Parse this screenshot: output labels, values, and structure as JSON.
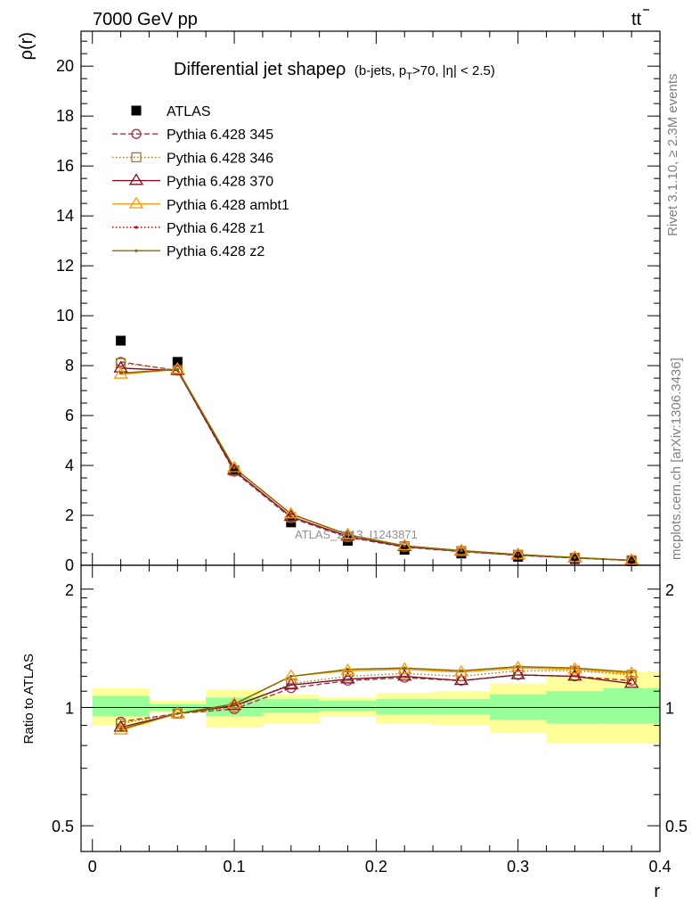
{
  "header": {
    "left": "7000 GeV pp",
    "right_symbol": "tt",
    "right_bar": "̄",
    "side_top": "Rivet 3.1.10, ≥ 2.3M events",
    "side_bottom": "mcplots.cern.ch [arXiv:1306.3436]"
  },
  "chart_data": [
    {
      "type": "scatter",
      "title_main": "Differential jet shapeρ",
      "title_cut_a": "(b-jets, p",
      "title_cut_sub": "T",
      "title_cut_b": ">70, |η| < 2.5)",
      "ylabel": "ρ(r)",
      "xlabel": "r",
      "xlim": [
        -0.008,
        0.4
      ],
      "ylim": [
        0,
        21.4
      ],
      "yticks": [
        0,
        2,
        4,
        6,
        8,
        10,
        12,
        14,
        16,
        18,
        20
      ],
      "ytick_labels": [
        "0",
        "2",
        "4",
        "6",
        "8",
        "10",
        "12",
        "14",
        "16",
        "18",
        "20"
      ],
      "watermark": "ATLAS_2013_I1243871",
      "x": [
        0.02,
        0.06,
        0.1,
        0.14,
        0.18,
        0.22,
        0.26,
        0.3,
        0.34,
        0.38
      ],
      "series": [
        {
          "name": "ATLAS",
          "color": "#000000",
          "marker": "square-filled",
          "line": "none",
          "values": [
            9.0,
            8.15,
            3.8,
            1.72,
            0.98,
            0.62,
            0.47,
            0.34,
            0.25,
            0.16
          ]
        },
        {
          "name": "Pythia 6.428 345",
          "color": "#b03040",
          "marker": "circle",
          "line": "dashed",
          "values": [
            8.15,
            7.8,
            3.75,
            1.9,
            1.12,
            0.73,
            0.55,
            0.4,
            0.29,
            0.19
          ]
        },
        {
          "name": "Pythia 6.428 346",
          "color": "#a07830",
          "marker": "square",
          "line": "dotted",
          "values": [
            8.1,
            7.82,
            3.78,
            1.92,
            1.15,
            0.76,
            0.57,
            0.42,
            0.3,
            0.2
          ]
        },
        {
          "name": "Pythia 6.428 370",
          "color": "#801020",
          "marker": "triangle",
          "line": "solid",
          "values": [
            7.9,
            7.8,
            3.8,
            1.95,
            1.16,
            0.75,
            0.56,
            0.41,
            0.3,
            0.19
          ]
        },
        {
          "name": "Pythia 6.428 ambt1",
          "color": "#ff9900",
          "marker": "triangle",
          "line": "solid",
          "values": [
            7.65,
            7.85,
            3.9,
            2.05,
            1.22,
            0.78,
            0.58,
            0.43,
            0.31,
            0.2
          ]
        },
        {
          "name": "Pythia 6.428 z1",
          "color": "#cc0000",
          "marker": "dot",
          "line": "dotted",
          "values": [
            7.7,
            7.85,
            3.9,
            2.05,
            1.23,
            0.78,
            0.59,
            0.43,
            0.31,
            0.2
          ]
        },
        {
          "name": "Pythia 6.428 z2",
          "color": "#807000",
          "marker": "dot",
          "line": "solid",
          "values": [
            7.7,
            7.85,
            3.9,
            2.06,
            1.23,
            0.78,
            0.59,
            0.43,
            0.31,
            0.2
          ]
        }
      ]
    },
    {
      "type": "line",
      "ylabel": "Ratio to ATLAS",
      "xlabel": "r",
      "xlim": [
        -0.008,
        0.4
      ],
      "ylim": [
        0.43,
        2.3
      ],
      "log_y": true,
      "yticks": [
        0.5,
        1,
        2
      ],
      "ytick_labels": [
        "0.5",
        "1",
        "2"
      ],
      "xticks": [
        0,
        0.1,
        0.2,
        0.3,
        0.4
      ],
      "xtick_labels": [
        "0",
        "0.1",
        "0.2",
        "0.3",
        "0.4"
      ],
      "bins": [
        [
          0.0,
          0.04
        ],
        [
          0.04,
          0.08
        ],
        [
          0.08,
          0.12
        ],
        [
          0.12,
          0.16
        ],
        [
          0.16,
          0.2
        ],
        [
          0.2,
          0.24
        ],
        [
          0.24,
          0.28
        ],
        [
          0.28,
          0.32
        ],
        [
          0.32,
          0.36
        ],
        [
          0.36,
          0.4
        ]
      ],
      "band_yellow": [
        [
          0.9,
          1.12
        ],
        [
          0.97,
          1.04
        ],
        [
          0.89,
          1.11
        ],
        [
          0.91,
          1.08
        ],
        [
          0.95,
          1.06
        ],
        [
          0.91,
          1.09
        ],
        [
          0.9,
          1.1
        ],
        [
          0.86,
          1.15
        ],
        [
          0.81,
          1.2
        ],
        [
          0.81,
          1.23
        ]
      ],
      "band_green": [
        [
          0.95,
          1.07
        ],
        [
          0.98,
          1.02
        ],
        [
          0.95,
          1.06
        ],
        [
          0.97,
          1.05
        ],
        [
          0.98,
          1.04
        ],
        [
          0.96,
          1.05
        ],
        [
          0.96,
          1.05
        ],
        [
          0.93,
          1.08
        ],
        [
          0.91,
          1.1
        ],
        [
          0.91,
          1.12
        ]
      ],
      "x": [
        0.02,
        0.06,
        0.1,
        0.14,
        0.18,
        0.22,
        0.26,
        0.3,
        0.34,
        0.38
      ],
      "series": [
        {
          "name": "Pythia 6.428 345",
          "values": [
            0.92,
            0.965,
            0.99,
            1.12,
            1.17,
            1.19,
            1.17,
            1.21,
            1.2,
            1.17
          ]
        },
        {
          "name": "Pythia 6.428 346",
          "values": [
            0.91,
            0.965,
            1.0,
            1.15,
            1.2,
            1.22,
            1.2,
            1.24,
            1.24,
            1.21
          ]
        },
        {
          "name": "Pythia 6.428 370",
          "values": [
            0.89,
            0.965,
            1.01,
            1.14,
            1.18,
            1.2,
            1.17,
            1.21,
            1.2,
            1.15
          ]
        },
        {
          "name": "Pythia 6.428 ambt1",
          "values": [
            0.875,
            0.965,
            1.02,
            1.2,
            1.24,
            1.25,
            1.23,
            1.26,
            1.25,
            1.22
          ]
        },
        {
          "name": "Pythia 6.428 z1",
          "values": [
            0.88,
            0.965,
            1.02,
            1.2,
            1.25,
            1.26,
            1.24,
            1.27,
            1.26,
            1.23
          ]
        },
        {
          "name": "Pythia 6.428 z2",
          "values": [
            0.88,
            0.965,
            1.02,
            1.2,
            1.25,
            1.26,
            1.24,
            1.27,
            1.26,
            1.23
          ]
        }
      ]
    }
  ]
}
